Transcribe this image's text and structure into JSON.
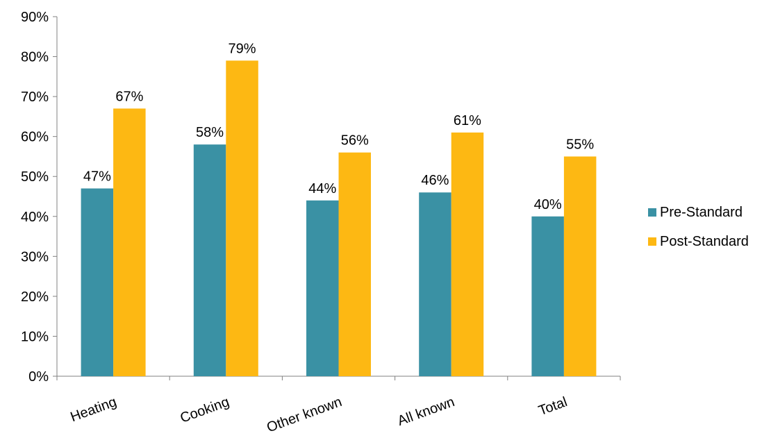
{
  "chart_data": {
    "type": "bar",
    "title": "",
    "xlabel": "",
    "ylabel": "",
    "categories": [
      "Heating",
      "Cooking",
      "Other known",
      "All known",
      "Total"
    ],
    "series": [
      {
        "name": "Pre-Standard",
        "values": [
          47,
          58,
          44,
          46,
          40
        ],
        "color": "#3a91a4"
      },
      {
        "name": "Post-Standard",
        "values": [
          67,
          79,
          56,
          61,
          55
        ],
        "color": "#fdb813"
      }
    ],
    "value_labels": {
      "Pre-Standard": [
        "47%",
        "58%",
        "44%",
        "46%",
        "40%"
      ],
      "Post-Standard": [
        "67%",
        "79%",
        "56%",
        "61%",
        "55%"
      ]
    },
    "ylim": [
      0,
      90
    ],
    "y_ticks": [
      "0%",
      "10%",
      "20%",
      "30%",
      "40%",
      "50%",
      "60%",
      "70%",
      "80%",
      "90%"
    ],
    "grid": false,
    "legend_position": "right"
  }
}
